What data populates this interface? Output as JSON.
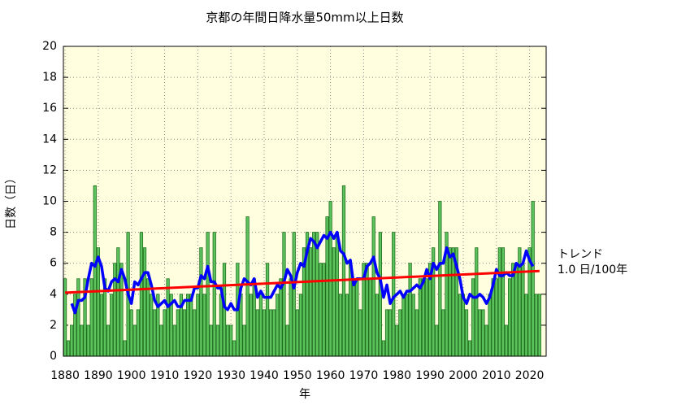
{
  "chart_data": {
    "type": "bar",
    "title": "京都の年間日降水量50mm以上日数",
    "ylabel": "日数（日）",
    "xlabel": "年",
    "annotations": [
      "トレンド",
      "1.0 日/100年"
    ],
    "x": [
      1880,
      1881,
      1882,
      1883,
      1884,
      1885,
      1886,
      1887,
      1888,
      1889,
      1890,
      1891,
      1892,
      1893,
      1894,
      1895,
      1896,
      1897,
      1898,
      1899,
      1900,
      1901,
      1902,
      1903,
      1904,
      1905,
      1906,
      1907,
      1908,
      1909,
      1910,
      1911,
      1912,
      1913,
      1914,
      1915,
      1916,
      1917,
      1918,
      1919,
      1920,
      1921,
      1922,
      1923,
      1924,
      1925,
      1926,
      1927,
      1928,
      1929,
      1930,
      1931,
      1932,
      1933,
      1934,
      1935,
      1936,
      1937,
      1938,
      1939,
      1940,
      1941,
      1942,
      1943,
      1944,
      1945,
      1946,
      1947,
      1948,
      1949,
      1950,
      1951,
      1952,
      1953,
      1954,
      1955,
      1956,
      1957,
      1958,
      1959,
      1960,
      1961,
      1962,
      1963,
      1964,
      1965,
      1966,
      1967,
      1968,
      1969,
      1970,
      1971,
      1972,
      1973,
      1974,
      1975,
      1976,
      1977,
      1978,
      1979,
      1980,
      1981,
      1982,
      1983,
      1984,
      1985,
      1986,
      1987,
      1988,
      1989,
      1990,
      1991,
      1992,
      1993,
      1994,
      1995,
      1996,
      1997,
      1998,
      1999,
      2000,
      2001,
      2002,
      2003,
      2004,
      2005,
      2006,
      2007,
      2008,
      2009,
      2010,
      2011,
      2012,
      2013,
      2014,
      2015,
      2016,
      2017,
      2018,
      2019,
      2020,
      2021,
      2022,
      2023
    ],
    "series": [
      {
        "type": "bar",
        "color": "#5cc35c",
        "values": [
          5,
          1,
          2,
          4,
          5,
          2,
          5,
          2,
          5,
          11,
          7,
          4,
          5,
          2,
          4,
          6,
          7,
          6,
          1,
          8,
          3,
          2,
          3,
          8,
          7,
          5,
          4,
          3,
          4,
          2,
          3,
          5,
          4,
          2,
          3,
          4,
          3,
          4,
          4,
          3,
          4,
          7,
          4,
          8,
          2,
          8,
          2,
          4,
          6,
          2,
          2,
          1,
          6,
          4,
          2,
          9,
          4,
          5,
          3,
          4,
          3,
          6,
          3,
          3,
          4,
          5,
          8,
          2,
          5,
          8,
          3,
          4,
          7,
          8,
          7,
          8,
          8,
          6,
          6,
          9,
          10,
          7,
          8,
          4,
          11,
          4,
          6,
          5,
          5,
          3,
          6,
          6,
          5,
          9,
          4,
          8,
          1,
          3,
          3,
          8,
          2,
          3,
          4,
          4,
          6,
          4,
          3,
          5,
          5,
          5,
          6,
          7,
          2,
          10,
          3,
          8,
          7,
          7,
          7,
          4,
          4,
          3,
          1,
          5,
          7,
          3,
          3,
          2,
          4,
          5,
          5,
          7,
          7,
          2,
          5,
          6,
          6,
          7,
          6,
          4,
          7,
          10,
          4,
          4
        ]
      },
      {
        "type": "line",
        "color": "#0000ff",
        "values": [
          null,
          null,
          3.4,
          2.8,
          3.6,
          3.6,
          3.8,
          5.0,
          6.0,
          5.8,
          6.4,
          5.8,
          4.4,
          4.2,
          4.8,
          5.0,
          4.8,
          5.6,
          5.0,
          4.0,
          3.4,
          4.8,
          4.6,
          5.0,
          5.4,
          5.4,
          4.6,
          3.6,
          3.2,
          3.4,
          3.6,
          3.2,
          3.4,
          3.6,
          3.2,
          3.2,
          3.6,
          3.6,
          3.6,
          4.4,
          4.4,
          5.2,
          5.0,
          5.8,
          4.8,
          4.8,
          4.4,
          4.4,
          3.2,
          3.0,
          3.4,
          3.0,
          3.0,
          4.4,
          5.0,
          4.8,
          4.6,
          5.0,
          3.8,
          4.2,
          3.8,
          3.8,
          3.8,
          4.2,
          4.6,
          4.4,
          4.8,
          5.6,
          5.2,
          4.4,
          5.4,
          6.0,
          5.8,
          6.8,
          7.6,
          7.4,
          7.0,
          7.4,
          7.8,
          7.6,
          8.0,
          7.6,
          8.0,
          6.8,
          6.6,
          6.0,
          6.2,
          4.6,
          5.0,
          5.0,
          5.0,
          5.8,
          6.0,
          6.4,
          5.4,
          5.0,
          3.8,
          4.6,
          3.4,
          3.8,
          4.0,
          4.2,
          3.8,
          4.2,
          4.2,
          4.4,
          4.6,
          4.4,
          4.8,
          5.6,
          5.0,
          6.0,
          5.6,
          6.0,
          6.0,
          7.0,
          6.4,
          6.6,
          5.8,
          5.0,
          3.8,
          3.4,
          4.0,
          3.8,
          3.8,
          4.0,
          3.8,
          3.4,
          3.8,
          4.6,
          5.6,
          5.2,
          5.2,
          5.4,
          5.2,
          5.2,
          6.0,
          5.8,
          6.0,
          6.8,
          6.2,
          5.8,
          null,
          null
        ]
      }
    ],
    "trend": {
      "color": "#ff0000",
      "x": [
        1880,
        2023
      ],
      "values": [
        4.1,
        5.5
      ]
    },
    "xlim": [
      1879.5,
      2025
    ],
    "xticks": [
      1880,
      1890,
      1900,
      1910,
      1920,
      1930,
      1940,
      1950,
      1960,
      1970,
      1980,
      1990,
      2000,
      2010,
      2020
    ],
    "ylim": [
      0,
      20
    ],
    "yticks": [
      0,
      2,
      4,
      6,
      8,
      10,
      12,
      14,
      16,
      18,
      20
    ],
    "grid": true,
    "background": "#ffffe0"
  }
}
